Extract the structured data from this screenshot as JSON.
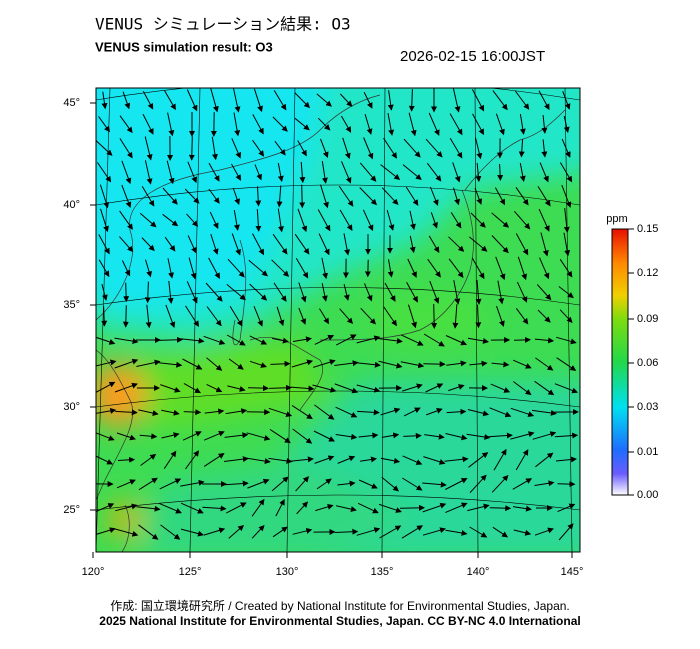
{
  "header": {
    "title": "VENUS シミュレーション結果: O3",
    "subtitle": "VENUS simulation result: O3",
    "datetime": "2026-02-15 16:00JST"
  },
  "map": {
    "lat_labels": [
      "45°",
      "40°",
      "35°",
      "30°",
      "25°"
    ],
    "lon_labels": [
      "120°",
      "125°",
      "130°",
      "135°",
      "140°",
      "145°"
    ]
  },
  "colorbar": {
    "unit": "ppm",
    "ticks": [
      0.15,
      0.12,
      0.09,
      0.06,
      0.03,
      0.01,
      {
        "value": 0,
        "label": "0.00"
      }
    ]
  },
  "footer": {
    "credit": "作成: 国立環境研究所 / Created by National Institute for Environmental Studies, Japan.",
    "license": "2025 National Institute for Environmental Studies, Japan. CC BY-NC 4.0 International"
  }
}
